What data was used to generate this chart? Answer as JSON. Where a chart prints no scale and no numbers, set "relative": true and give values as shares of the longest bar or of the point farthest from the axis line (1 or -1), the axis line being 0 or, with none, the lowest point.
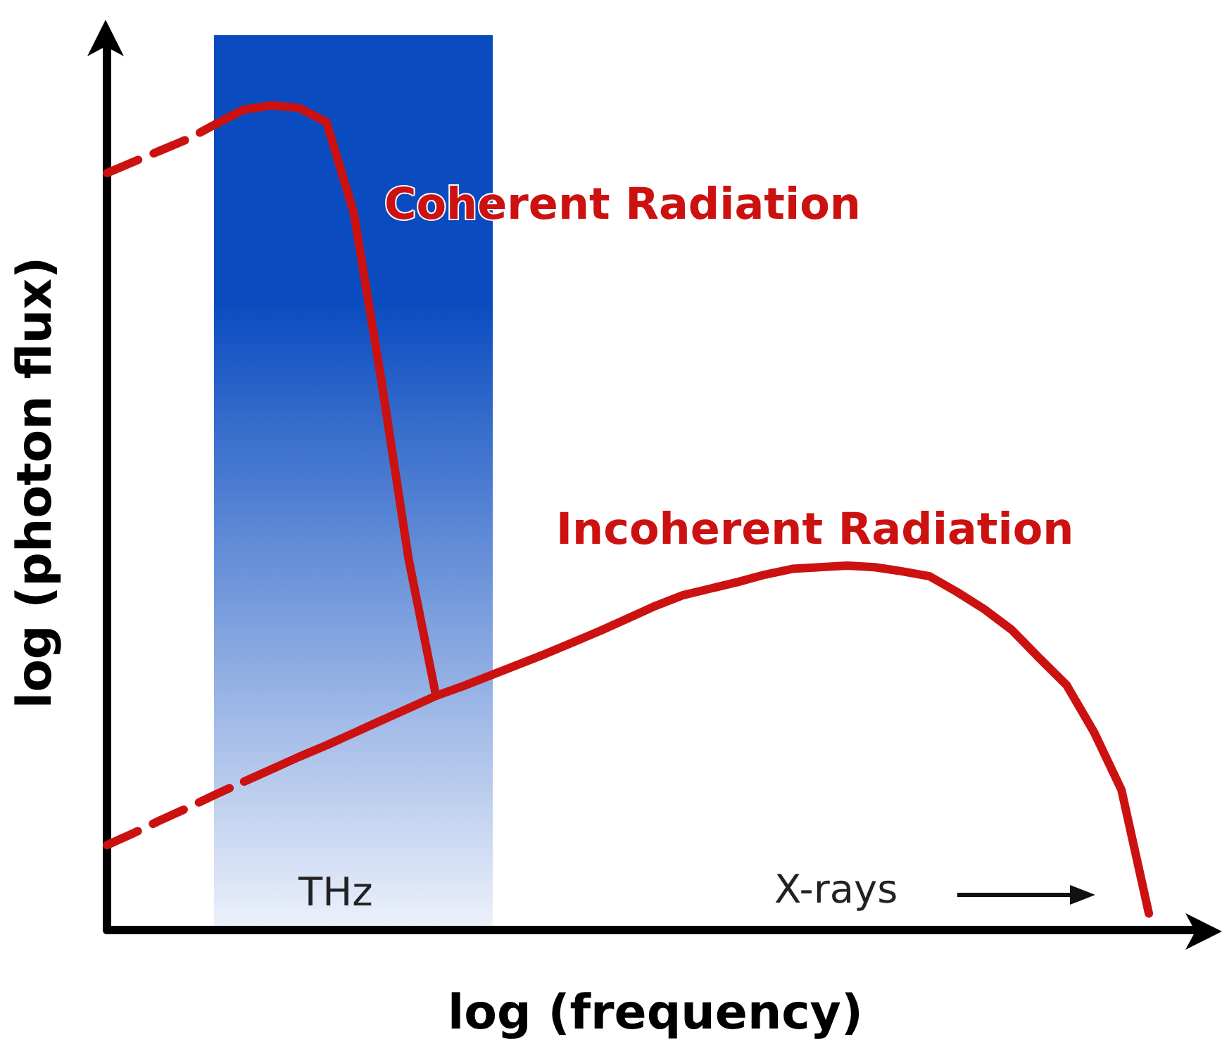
{
  "chart_data": {
    "type": "line",
    "relative": true,
    "xlabel": "log (frequency)",
    "ylabel": "log (photon flux)",
    "grid": false,
    "legend": false,
    "marker": "none",
    "categories": [
      null,
      null,
      null,
      null,
      null,
      null,
      null,
      null,
      null,
      null,
      null,
      null,
      null,
      null,
      null,
      null,
      null,
      null,
      null,
      null,
      null,
      null,
      null,
      null,
      null,
      null,
      null,
      null,
      null,
      null,
      null,
      null,
      null,
      null,
      null,
      null,
      null,
      null,
      null,
      null,
      null
    ],
    "series": [
      {
        "name": "Coherent Radiation",
        "color": "#cc1111",
        "line_style": "solid",
        "values": [
          null,
          null,
          null,
          null,
          0.978,
          0.995,
          1.0,
          0.997,
          0.98,
          0.87,
          0.668,
          0.45,
          0.284,
          null,
          null,
          null,
          null,
          null,
          null,
          null,
          null,
          null,
          null,
          null,
          null,
          null,
          null,
          null,
          null,
          null,
          null,
          null,
          null,
          null,
          null,
          null,
          null,
          null,
          null,
          null,
          null
        ]
      },
      {
        "color": "#cc1111",
        "line_style": "dashed",
        "values": [
          0.918,
          0.932,
          0.946,
          0.96,
          0.978,
          null,
          null,
          null,
          null,
          null,
          null,
          null,
          null,
          null,
          null,
          null,
          null,
          null,
          null,
          null,
          null,
          null,
          null,
          null,
          null,
          null,
          null,
          null,
          null,
          null,
          null,
          null,
          null,
          null,
          null,
          null,
          null,
          null,
          null,
          null,
          null
        ]
      },
      {
        "name": "Incoherent Radiation",
        "color": "#cc1111",
        "line_style": "solid",
        "values": [
          null,
          null,
          null,
          null,
          null,
          0.18,
          0.195,
          0.21,
          0.224,
          0.239,
          0.254,
          0.269,
          0.284,
          0.296,
          0.309,
          0.322,
          0.335,
          0.349,
          0.363,
          0.378,
          0.393,
          0.406,
          0.414,
          0.422,
          0.431,
          0.438,
          0.44,
          0.442,
          0.44,
          0.435,
          0.429,
          0.41,
          0.389,
          0.364,
          0.33,
          0.297,
          0.24,
          0.17,
          0.02,
          null,
          null
        ]
      },
      {
        "color": "#cc1111",
        "line_style": "dashed",
        "values": [
          0.103,
          0.118,
          0.134,
          0.149,
          0.165,
          0.18,
          null,
          null,
          null,
          null,
          null,
          null,
          null,
          null,
          null,
          null,
          null,
          null,
          null,
          null,
          null,
          null,
          null,
          null,
          null,
          null,
          null,
          null,
          null,
          null,
          null,
          null,
          null,
          null,
          null,
          null,
          null,
          null,
          null,
          null,
          null
        ]
      }
    ],
    "annotations": [
      "THz",
      "X-rays"
    ]
  }
}
